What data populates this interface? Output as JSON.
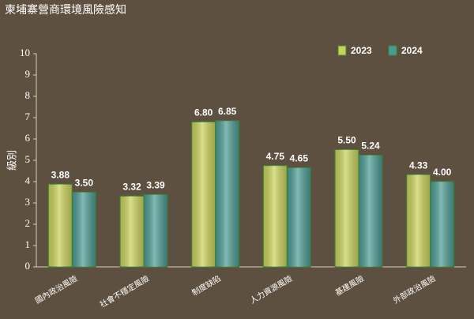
{
  "chart_data": {
    "type": "bar",
    "title": "柬埔寨營商環境風險感知",
    "y_label": "級別",
    "categories": [
      "國內政治風險",
      "社會不穩定風險",
      "制度缺陷",
      "人力資源風險",
      "基建風險",
      "外部政治風險"
    ],
    "series": [
      {
        "name": "2023",
        "color": "#c9d159",
        "values": [
          3.88,
          3.32,
          6.8,
          4.75,
          5.5,
          4.33
        ],
        "value_labels": [
          "3.88",
          "3.32",
          "6.80",
          "4.75",
          "5.50",
          "4.33"
        ]
      },
      {
        "name": "2024",
        "color": "#4d9a92",
        "values": [
          3.5,
          3.39,
          6.85,
          4.65,
          5.24,
          4.0
        ],
        "value_labels": [
          "3.50",
          "3.39",
          "6.85",
          "4.65",
          "5.24",
          "4.00"
        ]
      }
    ],
    "ylim": [
      0,
      10
    ],
    "yticks": [
      0,
      1,
      2,
      3,
      4,
      5,
      6,
      7,
      8,
      9,
      10
    ],
    "grid": false,
    "legend": "top-right"
  }
}
